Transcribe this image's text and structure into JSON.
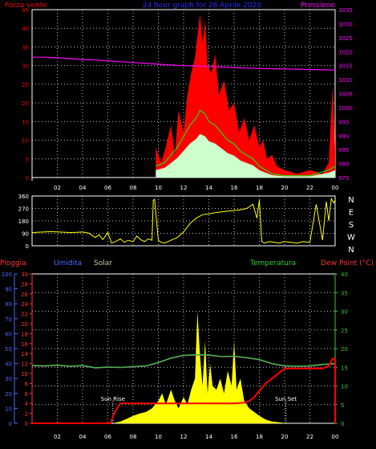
{
  "chart_data": [
    {
      "type": "area",
      "title": "24 hour graph for 26 Aprile 2020",
      "left_label": "Forza vento",
      "right_label": "Pressione",
      "left_ticks": [
        "0",
        "5",
        "10",
        "15",
        "20",
        "25",
        "30",
        "35",
        "40",
        "45"
      ],
      "right_ticks": [
        "975",
        "980",
        "985",
        "990",
        "995",
        "1000",
        "1005",
        "1010",
        "1015",
        "1020",
        "1025",
        "1030",
        "1035"
      ],
      "x_ticks": [
        "02",
        "04",
        "06",
        "08",
        "10",
        "12",
        "14",
        "16",
        "18",
        "20",
        "22",
        "00"
      ],
      "xlim": [
        0,
        24
      ],
      "ylim_left": [
        0,
        45
      ],
      "ylim_right": [
        975,
        1035
      ],
      "colors": {
        "gust": "#ff0000",
        "wind": "#00ff00",
        "light": "#ccffcc",
        "pressure": "#ff00ff",
        "axis_left": "#ff0000",
        "axis_right": "#ff00ff"
      },
      "series": [
        {
          "role": "pressure",
          "unit": "hPa",
          "x": [
            0,
            1,
            2,
            3,
            4,
            5,
            6,
            7,
            8,
            9,
            10,
            11,
            12,
            13,
            14,
            15,
            16,
            17,
            18,
            19,
            20,
            21,
            22,
            23,
            24
          ],
          "values": [
            1018,
            1018,
            1017.8,
            1017.5,
            1017.2,
            1017,
            1016.7,
            1016.4,
            1016.1,
            1015.8,
            1015.5,
            1015.2,
            1015,
            1014.9,
            1014.7,
            1014.5,
            1014.3,
            1014.1,
            1014,
            1013.9,
            1013.8,
            1013.7,
            1013.6,
            1013.5,
            1013.4
          ]
        },
        {
          "role": "gust",
          "unit": "km/h",
          "x": [
            9.8,
            10.2,
            10.5,
            11,
            11.3,
            11.6,
            12,
            12.3,
            12.6,
            12.9,
            13.1,
            13.3,
            13.5,
            13.7,
            13.9,
            14.2,
            14.5,
            14.8,
            15.2,
            15.6,
            16,
            16.4,
            16.8,
            17.2,
            17.6,
            18,
            18.3,
            18.6,
            19,
            19.4,
            20,
            21,
            22,
            23,
            23.5,
            23.8,
            24
          ],
          "values": [
            8,
            4,
            7,
            14,
            6,
            18,
            12,
            22,
            28,
            32,
            38,
            44,
            36,
            42,
            30,
            28,
            33,
            22,
            26,
            18,
            20,
            12,
            16,
            10,
            14,
            8,
            10,
            5,
            6,
            3,
            2,
            1,
            2,
            1,
            4,
            24,
            8
          ]
        },
        {
          "role": "wind",
          "unit": "km/h",
          "x": [
            9.8,
            10.5,
            11,
            11.5,
            12,
            12.5,
            13,
            13.3,
            13.7,
            14,
            14.5,
            15,
            15.5,
            16,
            16.5,
            17,
            17.5,
            18,
            18.5,
            19,
            20,
            22,
            23.5,
            24
          ],
          "values": [
            3,
            4,
            6,
            8,
            11,
            14,
            16,
            18,
            17,
            15,
            14,
            12,
            10,
            9,
            7,
            6,
            5,
            3,
            2,
            1,
            0.5,
            0.5,
            2,
            3
          ]
        }
      ]
    },
    {
      "type": "line",
      "title": "",
      "left_ticks": [
        "0",
        "90",
        "180",
        "270",
        "360"
      ],
      "right_ticks": [
        "N",
        "W",
        "S",
        "E",
        "N"
      ],
      "x_ticks": [
        "02",
        "04",
        "06",
        "08",
        "10",
        "12",
        "14",
        "16",
        "18",
        "20",
        "22",
        "00"
      ],
      "xlim": [
        0,
        24
      ],
      "ylim": [
        0,
        360
      ],
      "colors": {
        "line": "#ffff00",
        "axis": "#ffffff"
      },
      "series": [
        {
          "role": "direction",
          "unit": "degrees",
          "x": [
            0,
            0.5,
            1,
            1.5,
            2,
            2.5,
            3,
            3.5,
            4,
            4.5,
            5,
            5.3,
            5.6,
            6,
            6.3,
            6.6,
            7,
            7.3,
            7.6,
            8,
            8.3,
            8.6,
            8.9,
            9.2,
            9.5,
            9.6,
            9.7,
            10,
            10.2,
            10.5,
            11,
            11.5,
            12,
            12.5,
            13,
            13.5,
            14,
            14.5,
            15,
            15.5,
            16,
            16.5,
            17,
            17.5,
            17.8,
            18,
            18.2,
            18.4,
            18.8,
            19.2,
            19.6,
            20,
            20.5,
            21,
            21.5,
            22,
            22.5,
            23,
            23.3,
            23.5,
            23.7,
            23.9,
            24
          ],
          "values": [
            95,
            98,
            100,
            102,
            100,
            98,
            96,
            97,
            99,
            92,
            60,
            80,
            45,
            95,
            20,
            30,
            50,
            25,
            40,
            30,
            70,
            45,
            30,
            50,
            40,
            330,
            335,
            40,
            25,
            20,
            40,
            60,
            100,
            160,
            200,
            225,
            230,
            240,
            245,
            250,
            255,
            260,
            270,
            300,
            200,
            330,
            30,
            20,
            30,
            25,
            20,
            30,
            25,
            20,
            30,
            25,
            300,
            40,
            320,
            180,
            340,
            310,
            330
          ]
        }
      ]
    },
    {
      "type": "area",
      "title": "",
      "labels_left": [
        "Pioggia",
        "Umidita",
        "Solar"
      ],
      "labels_right": [
        "Temperatura",
        "Dew Point (°C)"
      ],
      "humidity_ticks": [
        "0",
        "10",
        "20",
        "30",
        "40",
        "50",
        "60",
        "70",
        "80",
        "90",
        "100"
      ],
      "rain_ticks": [
        "0",
        "2",
        "4",
        "6",
        "8",
        "10",
        "12",
        "14",
        "16",
        "18",
        "20",
        "22",
        "24",
        "26",
        "28",
        "30"
      ],
      "temp_ticks": [
        "0",
        "5",
        "10",
        "15",
        "20",
        "25",
        "30",
        "35",
        "40"
      ],
      "x_ticks": [
        "02",
        "04",
        "06",
        "08",
        "10",
        "12",
        "14",
        "16",
        "18",
        "20",
        "22",
        "00"
      ],
      "annotations": [
        "Sun Rise",
        "Sun Set"
      ],
      "sunrise_hour": 6.4,
      "sunset_hour": 20.1,
      "xlim": [
        0,
        24
      ],
      "ylim_rain": [
        0,
        30
      ],
      "ylim_humidity": [
        0,
        100
      ],
      "ylim_temp": [
        0,
        40
      ],
      "colors": {
        "rain_axis": "#ff3333",
        "humidity_axis": "#4b6bff",
        "temp_axis": "#33cc33",
        "solar": "#ffff00",
        "temperature": "#33cc33",
        "dewpoint": "#c050c0",
        "humidity": "#8080ff",
        "rain": "#ff0000"
      },
      "series": [
        {
          "role": "solar",
          "unit": "temp scale",
          "x": [
            6.4,
            7,
            7.5,
            8,
            8.5,
            9,
            9.5,
            10,
            10.3,
            10.6,
            11,
            11.3,
            11.6,
            12,
            12.3,
            12.6,
            12.9,
            13.1,
            13.3,
            13.5,
            13.7,
            13.9,
            14.1,
            14.3,
            14.6,
            14.9,
            15.2,
            15.5,
            15.8,
            16,
            16.2,
            16.5,
            16.8,
            17.2,
            17.6,
            18,
            18.5,
            19,
            19.5,
            20.1
          ],
          "values": [
            0,
            0.5,
            1.2,
            2,
            2.6,
            3,
            4,
            6,
            8,
            5,
            9,
            6,
            4,
            7,
            5,
            9,
            12,
            30,
            18,
            10,
            22,
            8,
            16,
            10,
            9,
            12,
            8,
            14,
            10,
            22,
            9,
            12,
            6,
            4,
            3,
            2,
            1,
            0.5,
            0.3,
            0
          ]
        },
        {
          "role": "temperature",
          "unit": "°C",
          "x": [
            0,
            1,
            2,
            3,
            4,
            5,
            6,
            7,
            8,
            9,
            10,
            11,
            12,
            13,
            14,
            15,
            16,
            17,
            18,
            19,
            20,
            21,
            22,
            23,
            24
          ],
          "values": [
            15.5,
            15.4,
            15.6,
            15.3,
            15.5,
            14.9,
            15.1,
            15,
            15.2,
            15.4,
            16.3,
            17.5,
            18.2,
            18.4,
            18.3,
            17.9,
            18.0,
            17.6,
            17.1,
            16.0,
            15.4,
            15.3,
            15.4,
            15.8,
            16.0
          ]
        },
        {
          "role": "dewpoint",
          "unit": "°C",
          "x": [
            0,
            1,
            2,
            3,
            4,
            5,
            6,
            7,
            8,
            9,
            10,
            11,
            12,
            13,
            14,
            15,
            16,
            17,
            18,
            19,
            20,
            21,
            22,
            23,
            24
          ],
          "values": [
            15.4,
            15.3,
            15.5,
            15.2,
            15.4,
            14.8,
            15.0,
            14.9,
            15.1,
            15.3,
            16.2,
            17.4,
            18.1,
            18.3,
            18.2,
            17.8,
            17.9,
            17.5,
            17.0,
            15.9,
            15.3,
            15.2,
            15.3,
            15.7,
            15.9
          ]
        },
        {
          "role": "rain",
          "unit": "mm",
          "x": [
            0,
            6.2,
            6.6,
            7,
            7.5,
            8,
            10,
            12,
            14,
            16,
            17,
            17.5,
            18,
            18.5,
            19,
            19.5,
            20,
            21,
            22,
            23,
            23.5,
            23.8,
            24
          ],
          "values": [
            0,
            0,
            2.5,
            4,
            4,
            4,
            4,
            4,
            4,
            4,
            4.2,
            5,
            6.5,
            8,
            9,
            10,
            11,
            11,
            11,
            11,
            11.5,
            13,
            13
          ]
        }
      ]
    }
  ]
}
